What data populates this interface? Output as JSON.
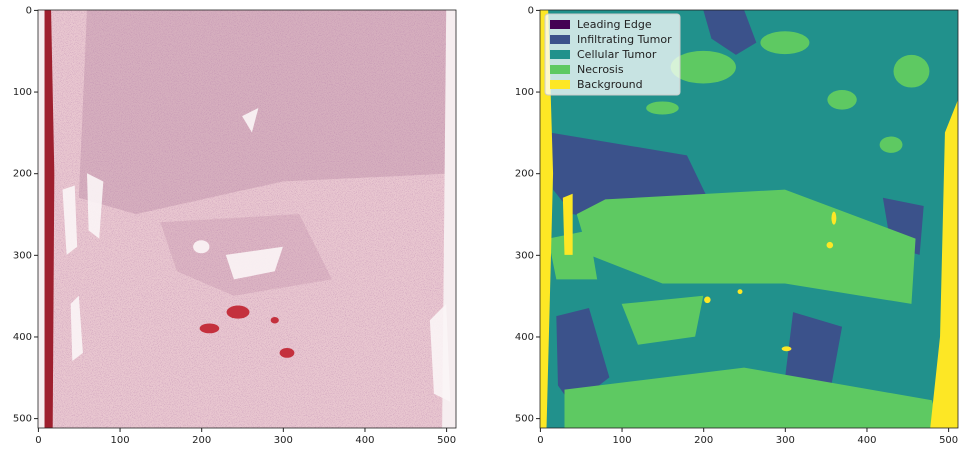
{
  "chart_data": [
    {
      "type": "image",
      "xlim": [
        -0.5,
        511.5
      ],
      "ylim": [
        511.5,
        -0.5
      ],
      "xticks": [
        0,
        100,
        200,
        300,
        400,
        500
      ],
      "yticks": [
        0,
        100,
        200,
        300,
        400,
        500
      ]
    },
    {
      "type": "image",
      "xlim": [
        -0.5,
        511.5
      ],
      "ylim": [
        511.5,
        -0.5
      ],
      "xticks": [
        0,
        100,
        200,
        300,
        400,
        500
      ],
      "yticks": [
        0,
        100,
        200,
        300,
        400,
        500
      ],
      "legend": "upper left",
      "series": [
        {
          "name": "Leading Edge",
          "color": "#440154"
        },
        {
          "name": "Infiltrating Tumor",
          "color": "#3b528b"
        },
        {
          "name": "Cellular Tumor",
          "color": "#21918c"
        },
        {
          "name": "Necrosis",
          "color": "#5ec962"
        },
        {
          "name": "Background",
          "color": "#fde725"
        }
      ]
    }
  ]
}
